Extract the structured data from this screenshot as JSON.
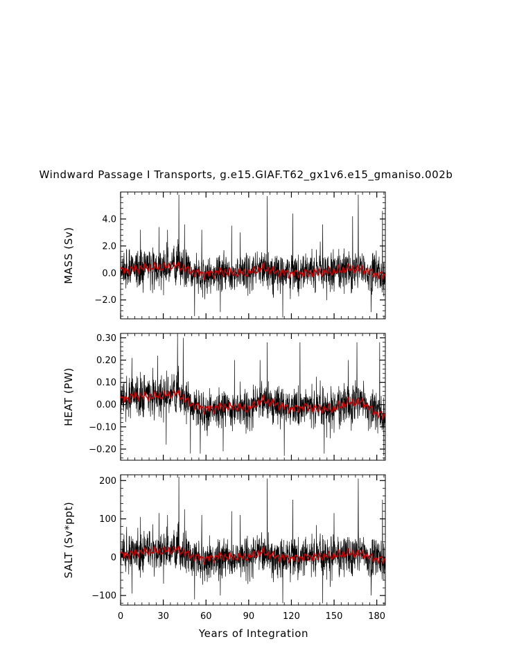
{
  "chart_data": {
    "type": "line",
    "title": "Windward Passage I Transports, g.e15.GIAF.T62_gx1v6.e15_gmaniso.002b",
    "xlabel": "Years of Integration",
    "xlim": [
      0,
      186
    ],
    "x_ticks": [
      0,
      30,
      60,
      90,
      120,
      150,
      180
    ],
    "x_tick_labels": [
      "0",
      "30",
      "60",
      "90",
      "120",
      "150",
      "180"
    ],
    "grid": false,
    "colors": {
      "raw": "#000000",
      "smoothed": "#cc0000"
    },
    "panels": [
      {
        "ylabel": "MASS (Sv)",
        "ylim": [
          -3.4,
          6.0
        ],
        "y_ticks": [
          -2.0,
          0.0,
          2.0,
          4.0
        ],
        "y_tick_labels": [
          "−2.0",
          "0.0",
          "2.0",
          "4.0"
        ],
        "raw_std": 0.9,
        "smooth_amp": 0.3,
        "smooth_trend": [
          [
            0,
            0.15
          ],
          [
            10,
            0.3
          ],
          [
            20,
            0.4
          ],
          [
            30,
            0.4
          ],
          [
            40,
            0.55
          ],
          [
            50,
            0.1
          ],
          [
            60,
            -0.1
          ],
          [
            70,
            0.1
          ],
          [
            80,
            0.0
          ],
          [
            90,
            0.0
          ],
          [
            100,
            0.35
          ],
          [
            110,
            0.05
          ],
          [
            120,
            -0.05
          ],
          [
            130,
            0.0
          ],
          [
            140,
            0.05
          ],
          [
            150,
            0.1
          ],
          [
            160,
            0.3
          ],
          [
            170,
            0.25
          ],
          [
            180,
            -0.1
          ],
          [
            186,
            -0.2
          ]
        ],
        "spikes": [
          [
            14,
            3.2
          ],
          [
            27,
            3.4
          ],
          [
            33,
            3.2
          ],
          [
            41,
            5.8
          ],
          [
            45,
            3.6
          ],
          [
            52,
            -3.2
          ],
          [
            57,
            3.2
          ],
          [
            70,
            -2.9
          ],
          [
            78,
            3.5
          ],
          [
            84,
            3.0
          ],
          [
            103,
            5.7
          ],
          [
            114,
            -3.3
          ],
          [
            121,
            4.4
          ],
          [
            142,
            3.6
          ],
          [
            163,
            4.2
          ],
          [
            167,
            5.8
          ],
          [
            176,
            -2.9
          ],
          [
            184,
            4.6
          ]
        ]
      },
      {
        "ylabel": "HEAT (PW)",
        "ylim": [
          -0.25,
          0.32
        ],
        "y_ticks": [
          -0.2,
          -0.1,
          0.0,
          0.1,
          0.2,
          0.3
        ],
        "y_tick_labels": [
          "−0.20",
          "−0.10",
          "0.00",
          "0.10",
          "0.20",
          "0.30"
        ],
        "raw_std": 0.055,
        "smooth_amp": 0.018,
        "smooth_trend": [
          [
            0,
            0.02
          ],
          [
            10,
            0.04
          ],
          [
            20,
            0.035
          ],
          [
            30,
            0.04
          ],
          [
            40,
            0.05
          ],
          [
            50,
            0.0
          ],
          [
            60,
            -0.02
          ],
          [
            70,
            -0.01
          ],
          [
            80,
            -0.01
          ],
          [
            90,
            -0.02
          ],
          [
            100,
            0.02
          ],
          [
            110,
            0.0
          ],
          [
            120,
            -0.02
          ],
          [
            130,
            -0.01
          ],
          [
            140,
            -0.02
          ],
          [
            150,
            -0.02
          ],
          [
            160,
            0.01
          ],
          [
            170,
            0.01
          ],
          [
            180,
            -0.04
          ],
          [
            186,
            -0.05
          ]
        ],
        "spikes": [
          [
            8,
            0.21
          ],
          [
            26,
            0.22
          ],
          [
            32,
            -0.18
          ],
          [
            40,
            0.31
          ],
          [
            44,
            0.3
          ],
          [
            49,
            -0.22
          ],
          [
            56,
            -0.22
          ],
          [
            72,
            -0.21
          ],
          [
            80,
            0.2
          ],
          [
            98,
            0.2
          ],
          [
            103,
            0.28
          ],
          [
            115,
            -0.23
          ],
          [
            126,
            0.28
          ],
          [
            143,
            -0.22
          ],
          [
            160,
            0.2
          ],
          [
            166,
            0.28
          ],
          [
            182,
            0.28
          ],
          [
            185,
            -0.23
          ]
        ]
      },
      {
        "ylabel": "SALT (Sv*ppt)",
        "ylim": [
          -125,
          215
        ],
        "y_ticks": [
          -100,
          0,
          100,
          200
        ],
        "y_tick_labels": [
          "−100",
          "0",
          "100",
          "200"
        ],
        "raw_std": 32,
        "smooth_amp": 10,
        "smooth_trend": [
          [
            0,
            5
          ],
          [
            10,
            10
          ],
          [
            20,
            15
          ],
          [
            30,
            15
          ],
          [
            40,
            20
          ],
          [
            50,
            3
          ],
          [
            60,
            -5
          ],
          [
            70,
            3
          ],
          [
            80,
            0
          ],
          [
            90,
            0
          ],
          [
            100,
            13
          ],
          [
            110,
            0
          ],
          [
            120,
            -3
          ],
          [
            130,
            0
          ],
          [
            140,
            2
          ],
          [
            150,
            3
          ],
          [
            160,
            10
          ],
          [
            170,
            8
          ],
          [
            180,
            -5
          ],
          [
            186,
            -8
          ]
        ],
        "spikes": [
          [
            8,
            -95
          ],
          [
            14,
            105
          ],
          [
            27,
            115
          ],
          [
            33,
            110
          ],
          [
            41,
            210
          ],
          [
            45,
            125
          ],
          [
            52,
            -110
          ],
          [
            57,
            110
          ],
          [
            70,
            -100
          ],
          [
            78,
            120
          ],
          [
            84,
            110
          ],
          [
            103,
            205
          ],
          [
            114,
            -120
          ],
          [
            121,
            150
          ],
          [
            142,
            -120
          ],
          [
            150,
            115
          ],
          [
            167,
            205
          ],
          [
            176,
            -100
          ],
          [
            184,
            150
          ]
        ]
      }
    ]
  }
}
